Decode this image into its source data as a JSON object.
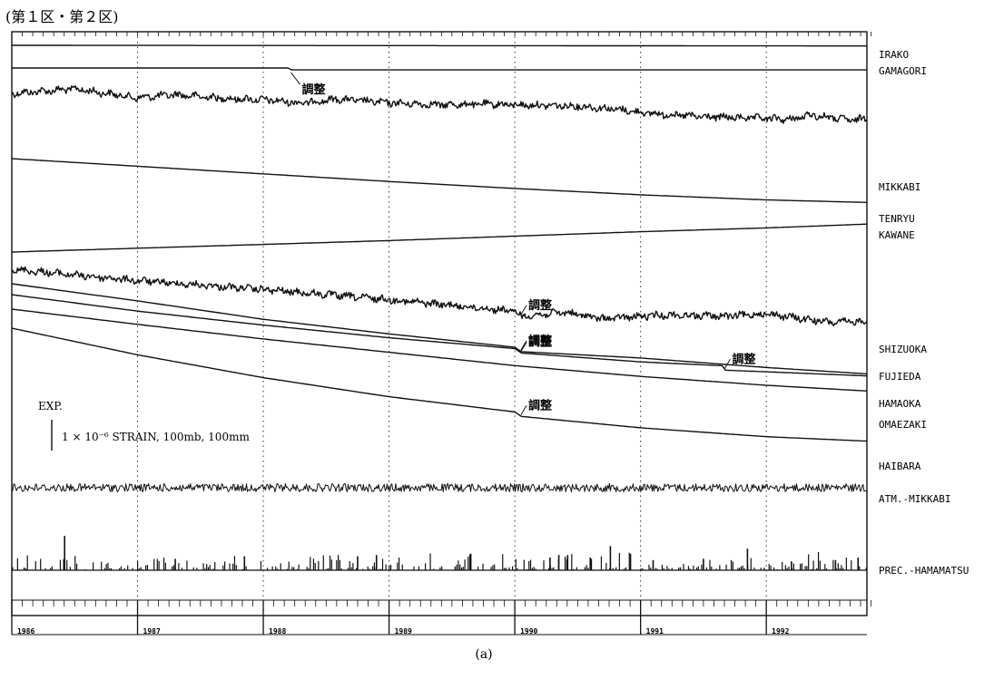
{
  "title": "(第１区・第２区)",
  "caption": "(a)",
  "scale": {
    "label": "EXP.",
    "text": "1 × 10⁻⁶ STRAIN, 100mb, 100mm"
  },
  "chart_data": {
    "type": "line",
    "title": "(第１区・第２区)",
    "x_unit": "year",
    "xlim": [
      1986.0,
      1992.8
    ],
    "x_tick_labels": [
      "1986",
      "1987",
      "1988",
      "1989",
      "1990",
      "1991",
      "1992"
    ],
    "grid": "vertical dotted lines at year boundaries",
    "y_scale_note": "1 × 10⁻⁶ STRAIN, 100mb, 100mm",
    "series": [
      {
        "name": "IRAKO",
        "style": "smooth",
        "rel": [
          [
            1986.0,
            0
          ],
          [
            1992.8,
            0.05
          ]
        ]
      },
      {
        "name": "GAMAGORI",
        "style": "smooth",
        "rel": [
          [
            1986.0,
            0
          ],
          [
            1988.2,
            0
          ],
          [
            1988.22,
            0.15
          ],
          [
            1992.8,
            0.15
          ]
        ]
      },
      {
        "name": "MIKKABI",
        "style": "noisy",
        "rel": [
          [
            1986.0,
            0
          ],
          [
            1986.5,
            -0.35
          ],
          [
            1987.0,
            0.35
          ],
          [
            1987.3,
            0.1
          ],
          [
            1987.7,
            0.4
          ],
          [
            1988.0,
            0.5
          ],
          [
            1988.3,
            0.75
          ],
          [
            1988.6,
            0.45
          ],
          [
            1989.0,
            0.75
          ],
          [
            1989.4,
            0.9
          ],
          [
            1989.8,
            0.85
          ],
          [
            1990.2,
            0.95
          ],
          [
            1990.5,
            1.0
          ],
          [
            1990.8,
            1.25
          ],
          [
            1991.1,
            1.6
          ],
          [
            1991.5,
            1.85
          ],
          [
            1991.9,
            1.95
          ],
          [
            1992.2,
            2.05
          ],
          [
            1992.35,
            1.7
          ],
          [
            1992.7,
            2.15
          ],
          [
            1992.8,
            1.9
          ]
        ]
      },
      {
        "name": "TENRYU",
        "style": "smooth",
        "rel": [
          [
            1986.0,
            0
          ],
          [
            1987.0,
            0.6
          ],
          [
            1988.0,
            1.2
          ],
          [
            1989.0,
            1.8
          ],
          [
            1990.0,
            2.35
          ],
          [
            1991.0,
            2.85
          ],
          [
            1992.0,
            3.25
          ],
          [
            1992.8,
            3.45
          ]
        ]
      },
      {
        "name": "KAWANE",
        "style": "smooth",
        "rel": [
          [
            1986.0,
            0
          ],
          [
            1987.0,
            -0.3
          ],
          [
            1988.0,
            -0.6
          ],
          [
            1989.0,
            -0.9
          ],
          [
            1990.0,
            -1.25
          ],
          [
            1991.0,
            -1.6
          ],
          [
            1992.0,
            -1.9
          ],
          [
            1992.8,
            -2.2
          ]
        ]
      },
      {
        "name": "SHIZUOKA",
        "style": "noisy",
        "rel": [
          [
            1986.0,
            0
          ],
          [
            1987.0,
            0.9
          ],
          [
            1988.0,
            1.6
          ],
          [
            1989.0,
            2.4
          ],
          [
            1990.0,
            3.3
          ],
          [
            1990.05,
            3.7
          ],
          [
            1990.4,
            3.4
          ],
          [
            1990.7,
            3.9
          ],
          [
            1991.2,
            3.6
          ],
          [
            1991.7,
            3.7
          ],
          [
            1992.0,
            3.5
          ],
          [
            1992.5,
            4.2
          ],
          [
            1992.8,
            4.1
          ]
        ]
      },
      {
        "name": "FUJIEDA",
        "style": "smooth",
        "rel": [
          [
            1986.0,
            0
          ],
          [
            1987.0,
            1.35
          ],
          [
            1988.0,
            2.8
          ],
          [
            1989.0,
            3.95
          ],
          [
            1990.0,
            5.0
          ],
          [
            1990.05,
            5.35
          ],
          [
            1991.0,
            5.85
          ],
          [
            1992.0,
            6.6
          ],
          [
            1992.8,
            7.1
          ]
        ]
      },
      {
        "name": "HAMAOKA",
        "style": "smooth",
        "rel": [
          [
            1986.0,
            0
          ],
          [
            1987.0,
            1.3
          ],
          [
            1988.0,
            2.4
          ],
          [
            1989.0,
            3.4
          ],
          [
            1990.0,
            4.25
          ],
          [
            1990.05,
            4.6
          ],
          [
            1991.0,
            5.3
          ],
          [
            1991.65,
            5.6
          ],
          [
            1991.67,
            5.95
          ],
          [
            1992.8,
            6.4
          ]
        ]
      },
      {
        "name": "OMAEZAKI",
        "style": "smooth",
        "rel": [
          [
            1986.0,
            0
          ],
          [
            1987.0,
            1.2
          ],
          [
            1988.0,
            2.35
          ],
          [
            1989.0,
            3.4
          ],
          [
            1990.0,
            4.45
          ],
          [
            1991.0,
            5.3
          ],
          [
            1992.0,
            6.0
          ],
          [
            1992.8,
            6.45
          ]
        ]
      },
      {
        "name": "HAIBARA",
        "style": "smooth",
        "rel": [
          [
            1986.0,
            0
          ],
          [
            1987.0,
            2.1
          ],
          [
            1988.0,
            3.9
          ],
          [
            1989.0,
            5.4
          ],
          [
            1990.0,
            6.6
          ],
          [
            1990.05,
            6.95
          ],
          [
            1991.0,
            7.85
          ],
          [
            1992.0,
            8.55
          ],
          [
            1992.8,
            8.9
          ]
        ]
      },
      {
        "name": "ATM.-MIKKABI",
        "style": "noise",
        "rel": [
          [
            1986.0,
            0
          ],
          [
            1992.8,
            0
          ]
        ]
      },
      {
        "name": "PREC.-HAMAMATSU",
        "style": "bars",
        "peaks": [
          [
            1986.42,
            2.7
          ],
          [
            1987.3,
            0.9
          ],
          [
            1987.85,
            1.1
          ],
          [
            1988.75,
            1.1
          ],
          [
            1988.9,
            1.2
          ],
          [
            1989.65,
            1.3
          ],
          [
            1990.28,
            1.0
          ],
          [
            1990.35,
            1.2
          ],
          [
            1990.42,
            1.2
          ],
          [
            1990.6,
            1.0
          ],
          [
            1990.76,
            1.9
          ],
          [
            1990.92,
            1.3
          ],
          [
            1991.1,
            0.8
          ],
          [
            1991.5,
            0.9
          ],
          [
            1991.85,
            1.7
          ],
          [
            1992.2,
            0.7
          ],
          [
            1992.55,
            0.8
          ],
          [
            1992.73,
            1.0
          ]
        ]
      }
    ],
    "annotations": [
      {
        "text": "調整",
        "series": "GAMAGORI",
        "x": 1988.22
      },
      {
        "text": "調整",
        "series": "SHIZUOKA",
        "x": 1990.05
      },
      {
        "text": "調整",
        "series": "FUJIEDA",
        "x": 1990.05
      },
      {
        "text": "調整",
        "series": "HAMAOKA",
        "x": 1990.05
      },
      {
        "text": "調整",
        "series": "HAMAOKA",
        "x": 1991.67
      },
      {
        "text": "調整",
        "series": "HAIBARA",
        "x": 1990.05
      }
    ]
  }
}
